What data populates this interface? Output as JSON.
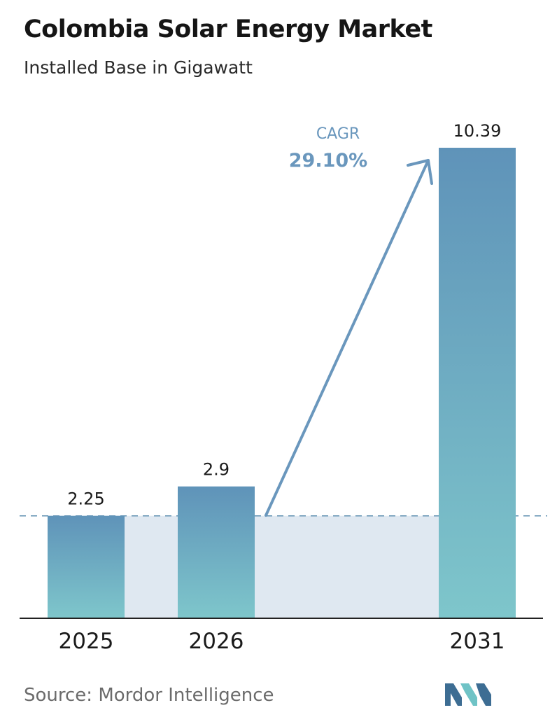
{
  "header": {
    "title": "Colombia Solar Energy Market",
    "subtitle": "Installed Base in Gigawatt"
  },
  "annotation": {
    "cagr_label": "CAGR",
    "cagr_value": "29.10%"
  },
  "footer": {
    "source": "Source:  Mordor Intelligence",
    "logo_icon": "mordor-intelligence-logo-icon"
  },
  "colors": {
    "bar_top": "#5f93b9",
    "bar_bottom": "#7ec6cb",
    "band": "#dfe8f1",
    "arrow": "#6a97bd",
    "reference_line": "#5f8fb1",
    "logo_dark": "#3d6d93",
    "logo_light": "#6fc3c6"
  },
  "chart_data": {
    "type": "bar",
    "categories": [
      "2025",
      "2026",
      "2031"
    ],
    "values": [
      2.25,
      2.9,
      10.39
    ],
    "value_labels": [
      "2.25",
      "2.9",
      "10.39"
    ],
    "title": "Colombia Solar Energy Market",
    "subtitle": "Installed Base in Gigawatt",
    "xlabel": "",
    "ylabel": "",
    "ylim": [
      0,
      10.39
    ],
    "grid": false,
    "legend": "none",
    "reference_line_value": 2.25
  }
}
